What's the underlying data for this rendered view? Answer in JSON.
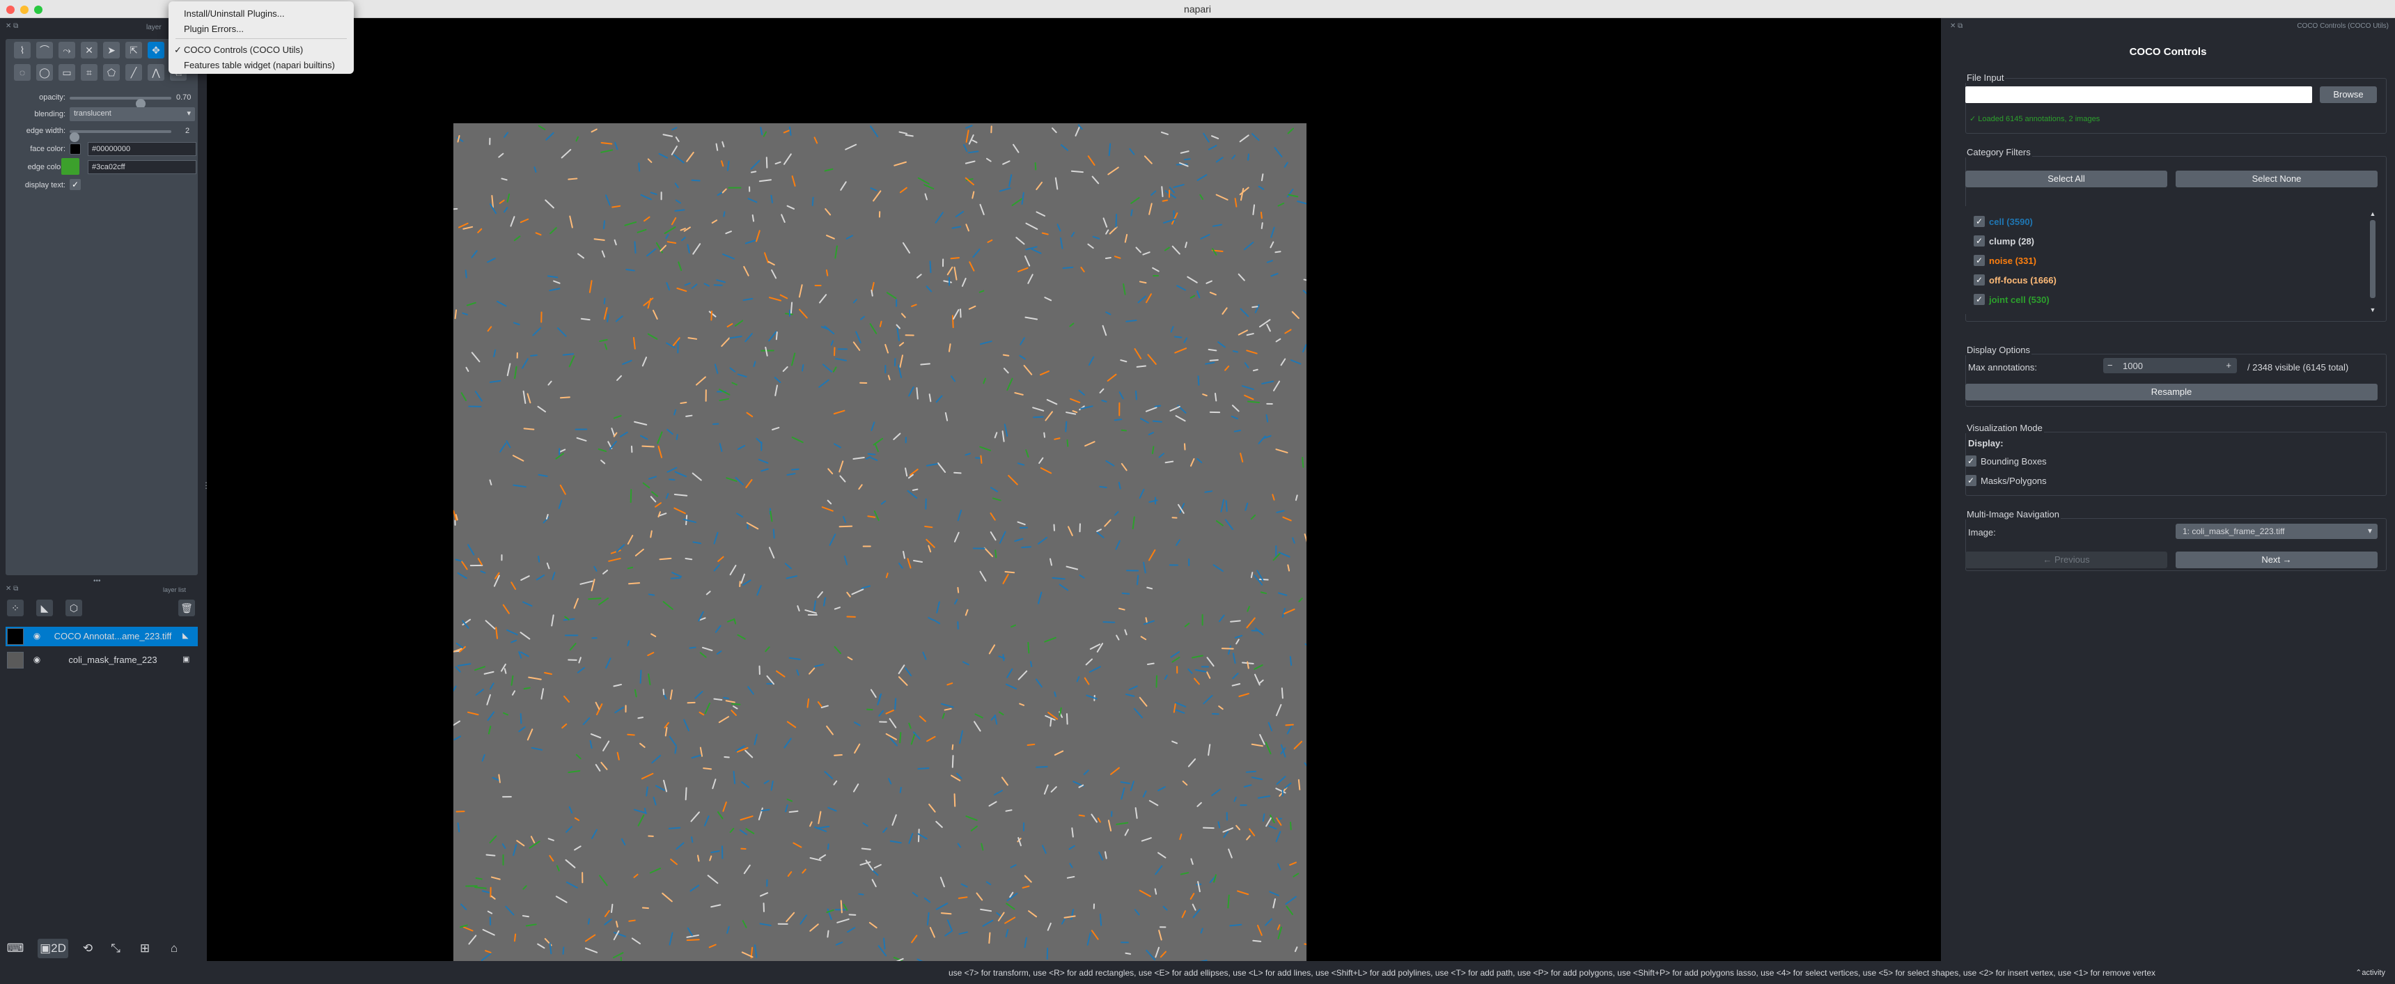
{
  "window": {
    "title": "napari"
  },
  "menu": {
    "items": [
      {
        "label": "Install/Uninstall Plugins...",
        "checked": false
      },
      {
        "label": "Plugin Errors...",
        "checked": false
      },
      {
        "label": "COCO Controls (COCO Utils)",
        "checked": true
      },
      {
        "label": "Features table widget (napari builtins)",
        "checked": false
      }
    ],
    "check_mark": "✓"
  },
  "layer_controls": {
    "header_label": "layer",
    "opacity": {
      "label": "opacity:",
      "value": "0.70",
      "fraction": 0.7
    },
    "blending": {
      "label": "blending:",
      "value": "translucent"
    },
    "edge_width": {
      "label": "edge width:",
      "value": "2"
    },
    "face_color": {
      "label": "face color:",
      "value": "#00000000"
    },
    "edge_color": {
      "label": "edge color:",
      "value": "#3ca02cff",
      "swatch": "#3ca02c"
    },
    "display_text": {
      "label": "display text:",
      "checked": true
    }
  },
  "layer_list": {
    "header_label": "layer list",
    "layers": [
      {
        "name": "COCO Annotat...ame_223.tiff",
        "selected": true,
        "type_icon": "shapes-icon"
      },
      {
        "name": "coli_mask_frame_223",
        "selected": false,
        "type_icon": "image-icon"
      }
    ]
  },
  "right_panel": {
    "dock_title": "COCO Controls (COCO Utils)",
    "heading": "COCO Controls",
    "file_input": {
      "group_label": "File Input",
      "path_value": "",
      "browse_label": "Browse",
      "status": "✓ Loaded 6145 annotations, 2 images"
    },
    "category_filters": {
      "group_label": "Category Filters",
      "select_all_label": "Select All",
      "select_none_label": "Select None",
      "categories": [
        {
          "label": "cell (3590)",
          "color": "#1f77b4",
          "checked": true
        },
        {
          "label": "clump (28)",
          "color": "#d6d8dc",
          "checked": true
        },
        {
          "label": "noise (331)",
          "color": "#ff7f0e",
          "checked": true
        },
        {
          "label": "off-focus (1666)",
          "color": "#ffbb78",
          "checked": true
        },
        {
          "label": "joint cell (530)",
          "color": "#2ca02c",
          "checked": true
        }
      ]
    },
    "display_options": {
      "group_label": "Display Options",
      "max_label": "Max annotations:",
      "max_value": "1000",
      "minus": "−",
      "plus": "+",
      "visible_text": "/ 2348 visible (6145 total)",
      "resample_label": "Resample"
    },
    "visualization": {
      "group_label": "Visualization Mode",
      "display_label": "Display:",
      "bounding_boxes_label": "Bounding Boxes",
      "masks_label": "Masks/Polygons"
    },
    "navigation": {
      "group_label": "Multi-Image Navigation",
      "image_label": "Image:",
      "image_value": "1: coli_mask_frame_223.tiff",
      "previous_label": "← Previous",
      "next_label": "Next →"
    }
  },
  "status_bar": {
    "hint": "use <7> for transform, use <R> for add rectangles, use <E> for add ellipses, use <L> for add lines, use <Shift+L> for add polylines, use <T> for add path, use <P> for add polygons, use <Shift+P> for add polygons lasso, use <4> for select vertices, use <5> for select shapes, use <2> for insert vertex, use <1> for remove vertex",
    "activity_label": "activity"
  },
  "colors": {
    "cell": "#1f77b4",
    "noise": "#ff7f0e",
    "off_focus": "#ffbb78",
    "joint_cell": "#2ca02c",
    "accent": "#007acc"
  }
}
